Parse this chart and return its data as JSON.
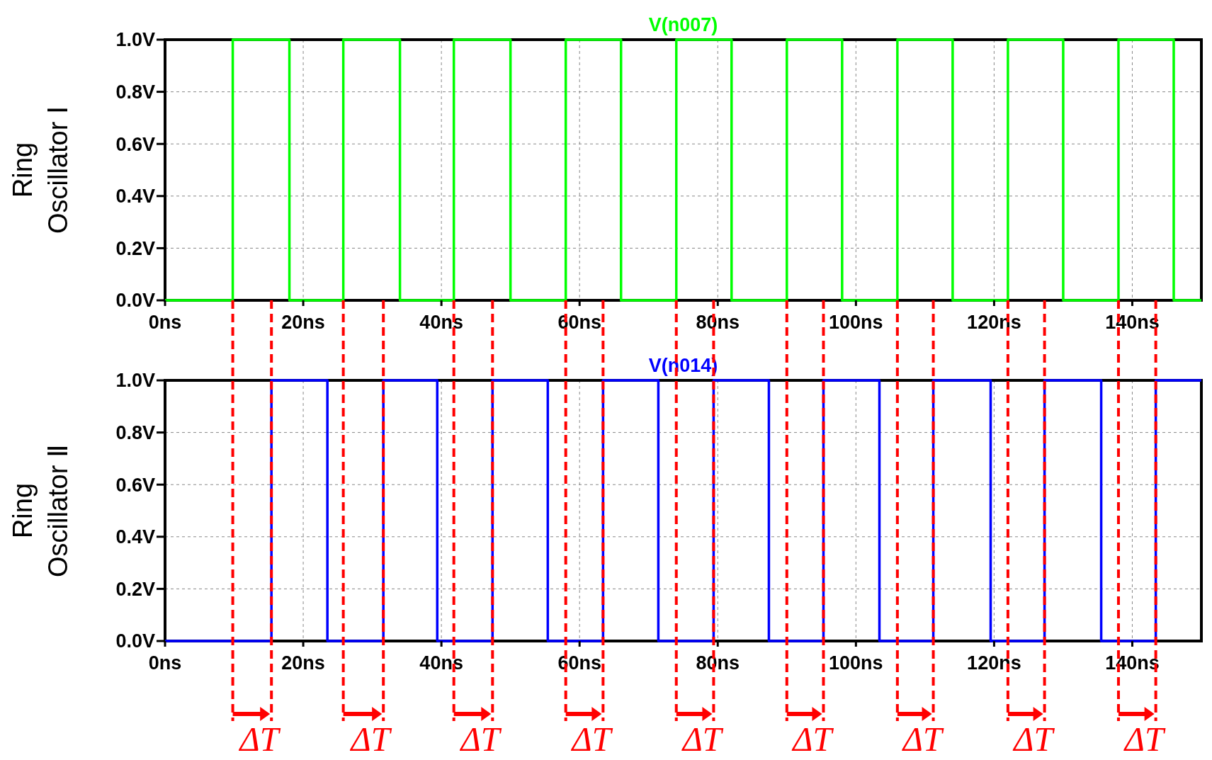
{
  "chart_data": [
    {
      "type": "step",
      "ylabel": "Ring Oscillator Ⅰ",
      "xlim": [
        0,
        150
      ],
      "ylim": [
        0,
        1
      ],
      "xticks": [
        {
          "value": 0,
          "label": "0ns"
        },
        {
          "value": 20,
          "label": "20ns"
        },
        {
          "value": 40,
          "label": "40ns"
        },
        {
          "value": 60,
          "label": "60ns"
        },
        {
          "value": 80,
          "label": "80ns"
        },
        {
          "value": 100,
          "label": "100ns"
        },
        {
          "value": 120,
          "label": "120ns"
        },
        {
          "value": 140,
          "label": "140ns"
        }
      ],
      "yticks": [
        {
          "value": 0,
          "label": "0.0V"
        },
        {
          "value": 0.2,
          "label": "0.2V"
        },
        {
          "value": 0.4,
          "label": "0.4V"
        },
        {
          "value": 0.6,
          "label": "0.6V"
        },
        {
          "value": 0.8,
          "label": "0.8V"
        },
        {
          "value": 1,
          "label": "1.0V"
        }
      ],
      "grid": true,
      "legend": "top",
      "series": [
        {
          "name": "V(n007)",
          "color": "#00ff00",
          "x": [
            0,
            9.8,
            18,
            25.8,
            34,
            41.8,
            50,
            58,
            66,
            74,
            82,
            90,
            98,
            106,
            114,
            122,
            130,
            138,
            146,
            150
          ],
          "values": [
            0,
            1,
            0,
            1,
            0,
            1,
            0,
            1,
            0,
            1,
            0,
            1,
            0,
            1,
            0,
            1,
            0,
            1,
            0,
            0
          ]
        }
      ]
    },
    {
      "type": "step",
      "ylabel": "Ring Oscillator Ⅱ",
      "xlim": [
        0,
        150
      ],
      "ylim": [
        0,
        1
      ],
      "xticks": [
        {
          "value": 0,
          "label": "0ns"
        },
        {
          "value": 20,
          "label": "20ns"
        },
        {
          "value": 40,
          "label": "40ns"
        },
        {
          "value": 60,
          "label": "60ns"
        },
        {
          "value": 80,
          "label": "80ns"
        },
        {
          "value": 100,
          "label": "100ns"
        },
        {
          "value": 120,
          "label": "120ns"
        },
        {
          "value": 140,
          "label": "140ns"
        }
      ],
      "yticks": [
        {
          "value": 0,
          "label": "0.0V"
        },
        {
          "value": 0.2,
          "label": "0.2V"
        },
        {
          "value": 0.4,
          "label": "0.4V"
        },
        {
          "value": 0.6,
          "label": "0.6V"
        },
        {
          "value": 0.8,
          "label": "0.8V"
        },
        {
          "value": 1,
          "label": "1.0V"
        }
      ],
      "grid": true,
      "legend": "top",
      "series": [
        {
          "name": "V(n014)",
          "color": "#0000ff",
          "x": [
            0,
            15.4,
            23.5,
            31.6,
            39.4,
            47.4,
            55.4,
            63.4,
            71.4,
            79.4,
            87.4,
            95.3,
            103.4,
            111.2,
            119.5,
            127.3,
            135.5,
            143.4,
            150
          ],
          "values": [
            0,
            1,
            0,
            1,
            0,
            1,
            0,
            1,
            0,
            1,
            0,
            1,
            0,
            1,
            0,
            1,
            0,
            1,
            1
          ]
        }
      ],
      "ref_lines": [
        {
          "axis": "x",
          "value": 9.8,
          "color": "#ff0000",
          "line_style": "dashed"
        },
        {
          "axis": "x",
          "value": 25.8,
          "color": "#ff0000",
          "line_style": "dashed"
        },
        {
          "axis": "x",
          "value": 41.8,
          "color": "#ff0000",
          "line_style": "dashed"
        },
        {
          "axis": "x",
          "value": 58,
          "color": "#ff0000",
          "line_style": "dashed"
        },
        {
          "axis": "x",
          "value": 74,
          "color": "#ff0000",
          "line_style": "dashed"
        },
        {
          "axis": "x",
          "value": 90,
          "color": "#ff0000",
          "line_style": "dashed"
        },
        {
          "axis": "x",
          "value": 106,
          "color": "#ff0000",
          "line_style": "dashed"
        },
        {
          "axis": "x",
          "value": 122,
          "color": "#ff0000",
          "line_style": "dashed"
        },
        {
          "axis": "x",
          "value": 138,
          "color": "#ff0000",
          "line_style": "dashed"
        },
        {
          "axis": "x",
          "value": 15.4,
          "color": "#ff0000",
          "line_style": "dashed"
        },
        {
          "axis": "x",
          "value": 31.6,
          "color": "#ff0000",
          "line_style": "dashed"
        },
        {
          "axis": "x",
          "value": 47.4,
          "color": "#ff0000",
          "line_style": "dashed"
        },
        {
          "axis": "x",
          "value": 63.4,
          "color": "#ff0000",
          "line_style": "dashed"
        },
        {
          "axis": "x",
          "value": 79.4,
          "color": "#ff0000",
          "line_style": "dashed"
        },
        {
          "axis": "x",
          "value": 95.3,
          "color": "#ff0000",
          "line_style": "dashed"
        },
        {
          "axis": "x",
          "value": 111.2,
          "color": "#ff0000",
          "line_style": "dashed"
        },
        {
          "axis": "x",
          "value": 127.3,
          "color": "#ff0000",
          "line_style": "dashed"
        },
        {
          "axis": "x",
          "value": 143.4,
          "color": "#ff0000",
          "line_style": "dashed"
        }
      ],
      "annotations": [
        "ΔT",
        "ΔT",
        "ΔT",
        "ΔT",
        "ΔT",
        "ΔT",
        "ΔT",
        "ΔT",
        "ΔT"
      ]
    }
  ]
}
